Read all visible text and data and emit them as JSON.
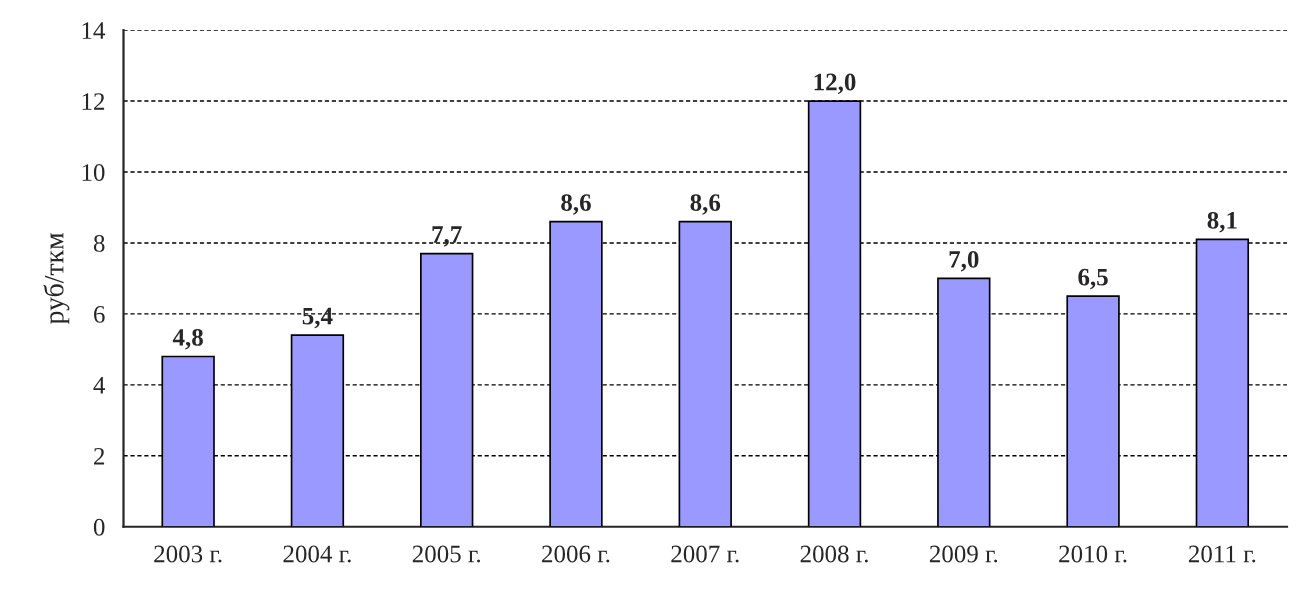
{
  "chart_data": {
    "type": "bar",
    "ylabel": "руб/ткм",
    "categories": [
      "2003 г.",
      "2004 г.",
      "2005 г.",
      "2006 г.",
      "2007 г.",
      "2008 г.",
      "2009 г.",
      "2010 г.",
      "2011 г."
    ],
    "values": [
      4.8,
      5.4,
      7.7,
      8.6,
      8.6,
      12.0,
      7.0,
      6.5,
      8.1
    ],
    "value_labels": [
      "4,8",
      "5,4",
      "7,7",
      "8,6",
      "8,6",
      "12,0",
      "7,0",
      "6,5",
      "8,1"
    ],
    "color": "#9999ff",
    "ylim": [
      0,
      14
    ],
    "yticks": [
      0,
      2,
      4,
      6,
      8,
      10,
      12,
      14
    ],
    "grid": "y",
    "line_style": "dashed"
  }
}
